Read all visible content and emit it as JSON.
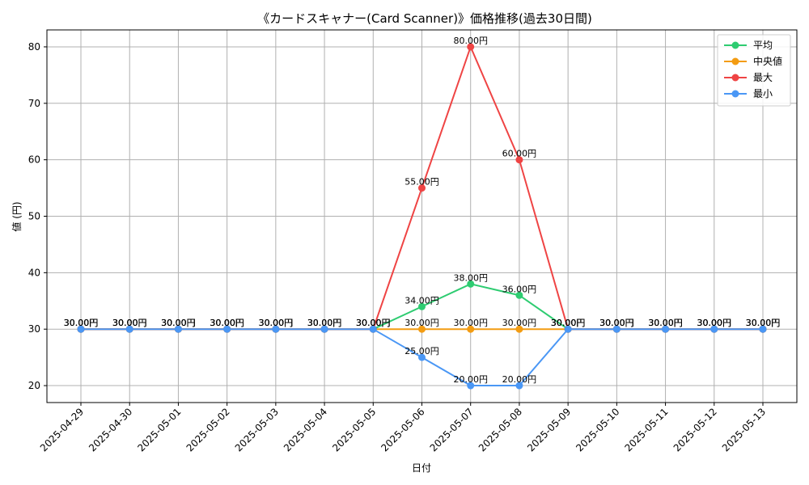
{
  "chart_data": {
    "type": "line",
    "title": "《カードスキャナー(Card Scanner)》価格推移(過去30日間)",
    "xlabel": "日付",
    "ylabel": "値 (円)",
    "ylim": [
      17,
      83
    ],
    "yticks": [
      20,
      30,
      40,
      50,
      60,
      70,
      80
    ],
    "grid": true,
    "legend_position": "top-right",
    "unit_suffix": "円",
    "categories": [
      "2025-04-29",
      "2025-04-30",
      "2025-05-01",
      "2025-05-02",
      "2025-05-03",
      "2025-05-04",
      "2025-05-05",
      "2025-05-06",
      "2025-05-07",
      "2025-05-08",
      "2025-05-09",
      "2025-05-10",
      "2025-05-11",
      "2025-05-12",
      "2025-05-13"
    ],
    "series": [
      {
        "name": "平均",
        "color": "#2ecc71",
        "values": [
          30,
          30,
          30,
          30,
          30,
          30,
          30,
          34,
          38,
          36,
          30,
          30,
          30,
          30,
          30
        ]
      },
      {
        "name": "中央値",
        "color": "#f39c12",
        "values": [
          30,
          30,
          30,
          30,
          30,
          30,
          30,
          30,
          30,
          30,
          30,
          30,
          30,
          30,
          30
        ]
      },
      {
        "name": "最大",
        "color": "#ef4444",
        "values": [
          30,
          30,
          30,
          30,
          30,
          30,
          30,
          55,
          80,
          60,
          30,
          30,
          30,
          30,
          30
        ]
      },
      {
        "name": "最小",
        "color": "#4a97f5",
        "values": [
          30,
          30,
          30,
          30,
          30,
          30,
          30,
          25,
          20,
          20,
          30,
          30,
          30,
          30,
          30
        ]
      }
    ]
  }
}
